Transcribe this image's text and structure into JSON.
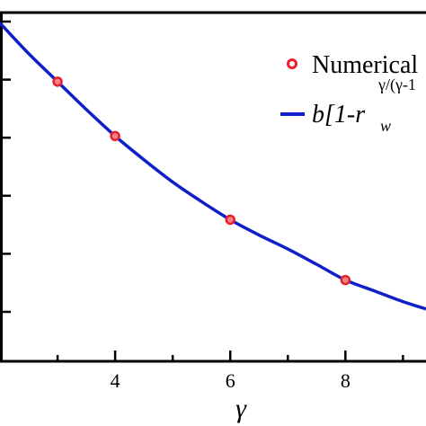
{
  "chart_data": {
    "type": "line",
    "xlabel": "γ",
    "ylabel": "",
    "xlim": [
      2.0,
      9.4
    ],
    "ylim": [
      0,
      1
    ],
    "x_ticks": [
      4,
      6,
      8
    ],
    "x_minor_ticks": [
      2.0,
      3,
      5,
      7,
      9
    ],
    "y_ticks_count": 6,
    "grid": false,
    "legend": {
      "placement": "top-right",
      "entries": [
        {
          "marker": "circle",
          "label": "Numerical"
        },
        {
          "marker": "line",
          "label_main": "b[1-r",
          "label_sub": "w",
          "label_sup": "γ/(γ-1"
        }
      ]
    },
    "series": [
      {
        "name": "Numerical",
        "kind": "scatter",
        "color": "#e8202a",
        "x": [
          3,
          4,
          6,
          8
        ],
        "y": [
          0.802,
          0.646,
          0.406,
          0.233
        ]
      },
      {
        "name": "b[1-r_w^γ/(γ-1)]",
        "kind": "line",
        "color": "#1020c8",
        "x": [
          2.0,
          2.5,
          3,
          3.5,
          4,
          4.5,
          5,
          5.5,
          6,
          6.5,
          7,
          7.5,
          8,
          8.5,
          9,
          9.4
        ],
        "y": [
          0.97,
          0.882,
          0.802,
          0.722,
          0.646,
          0.578,
          0.514,
          0.458,
          0.406,
          0.362,
          0.322,
          0.278,
          0.233,
          0.202,
          0.171,
          0.15
        ]
      }
    ]
  }
}
